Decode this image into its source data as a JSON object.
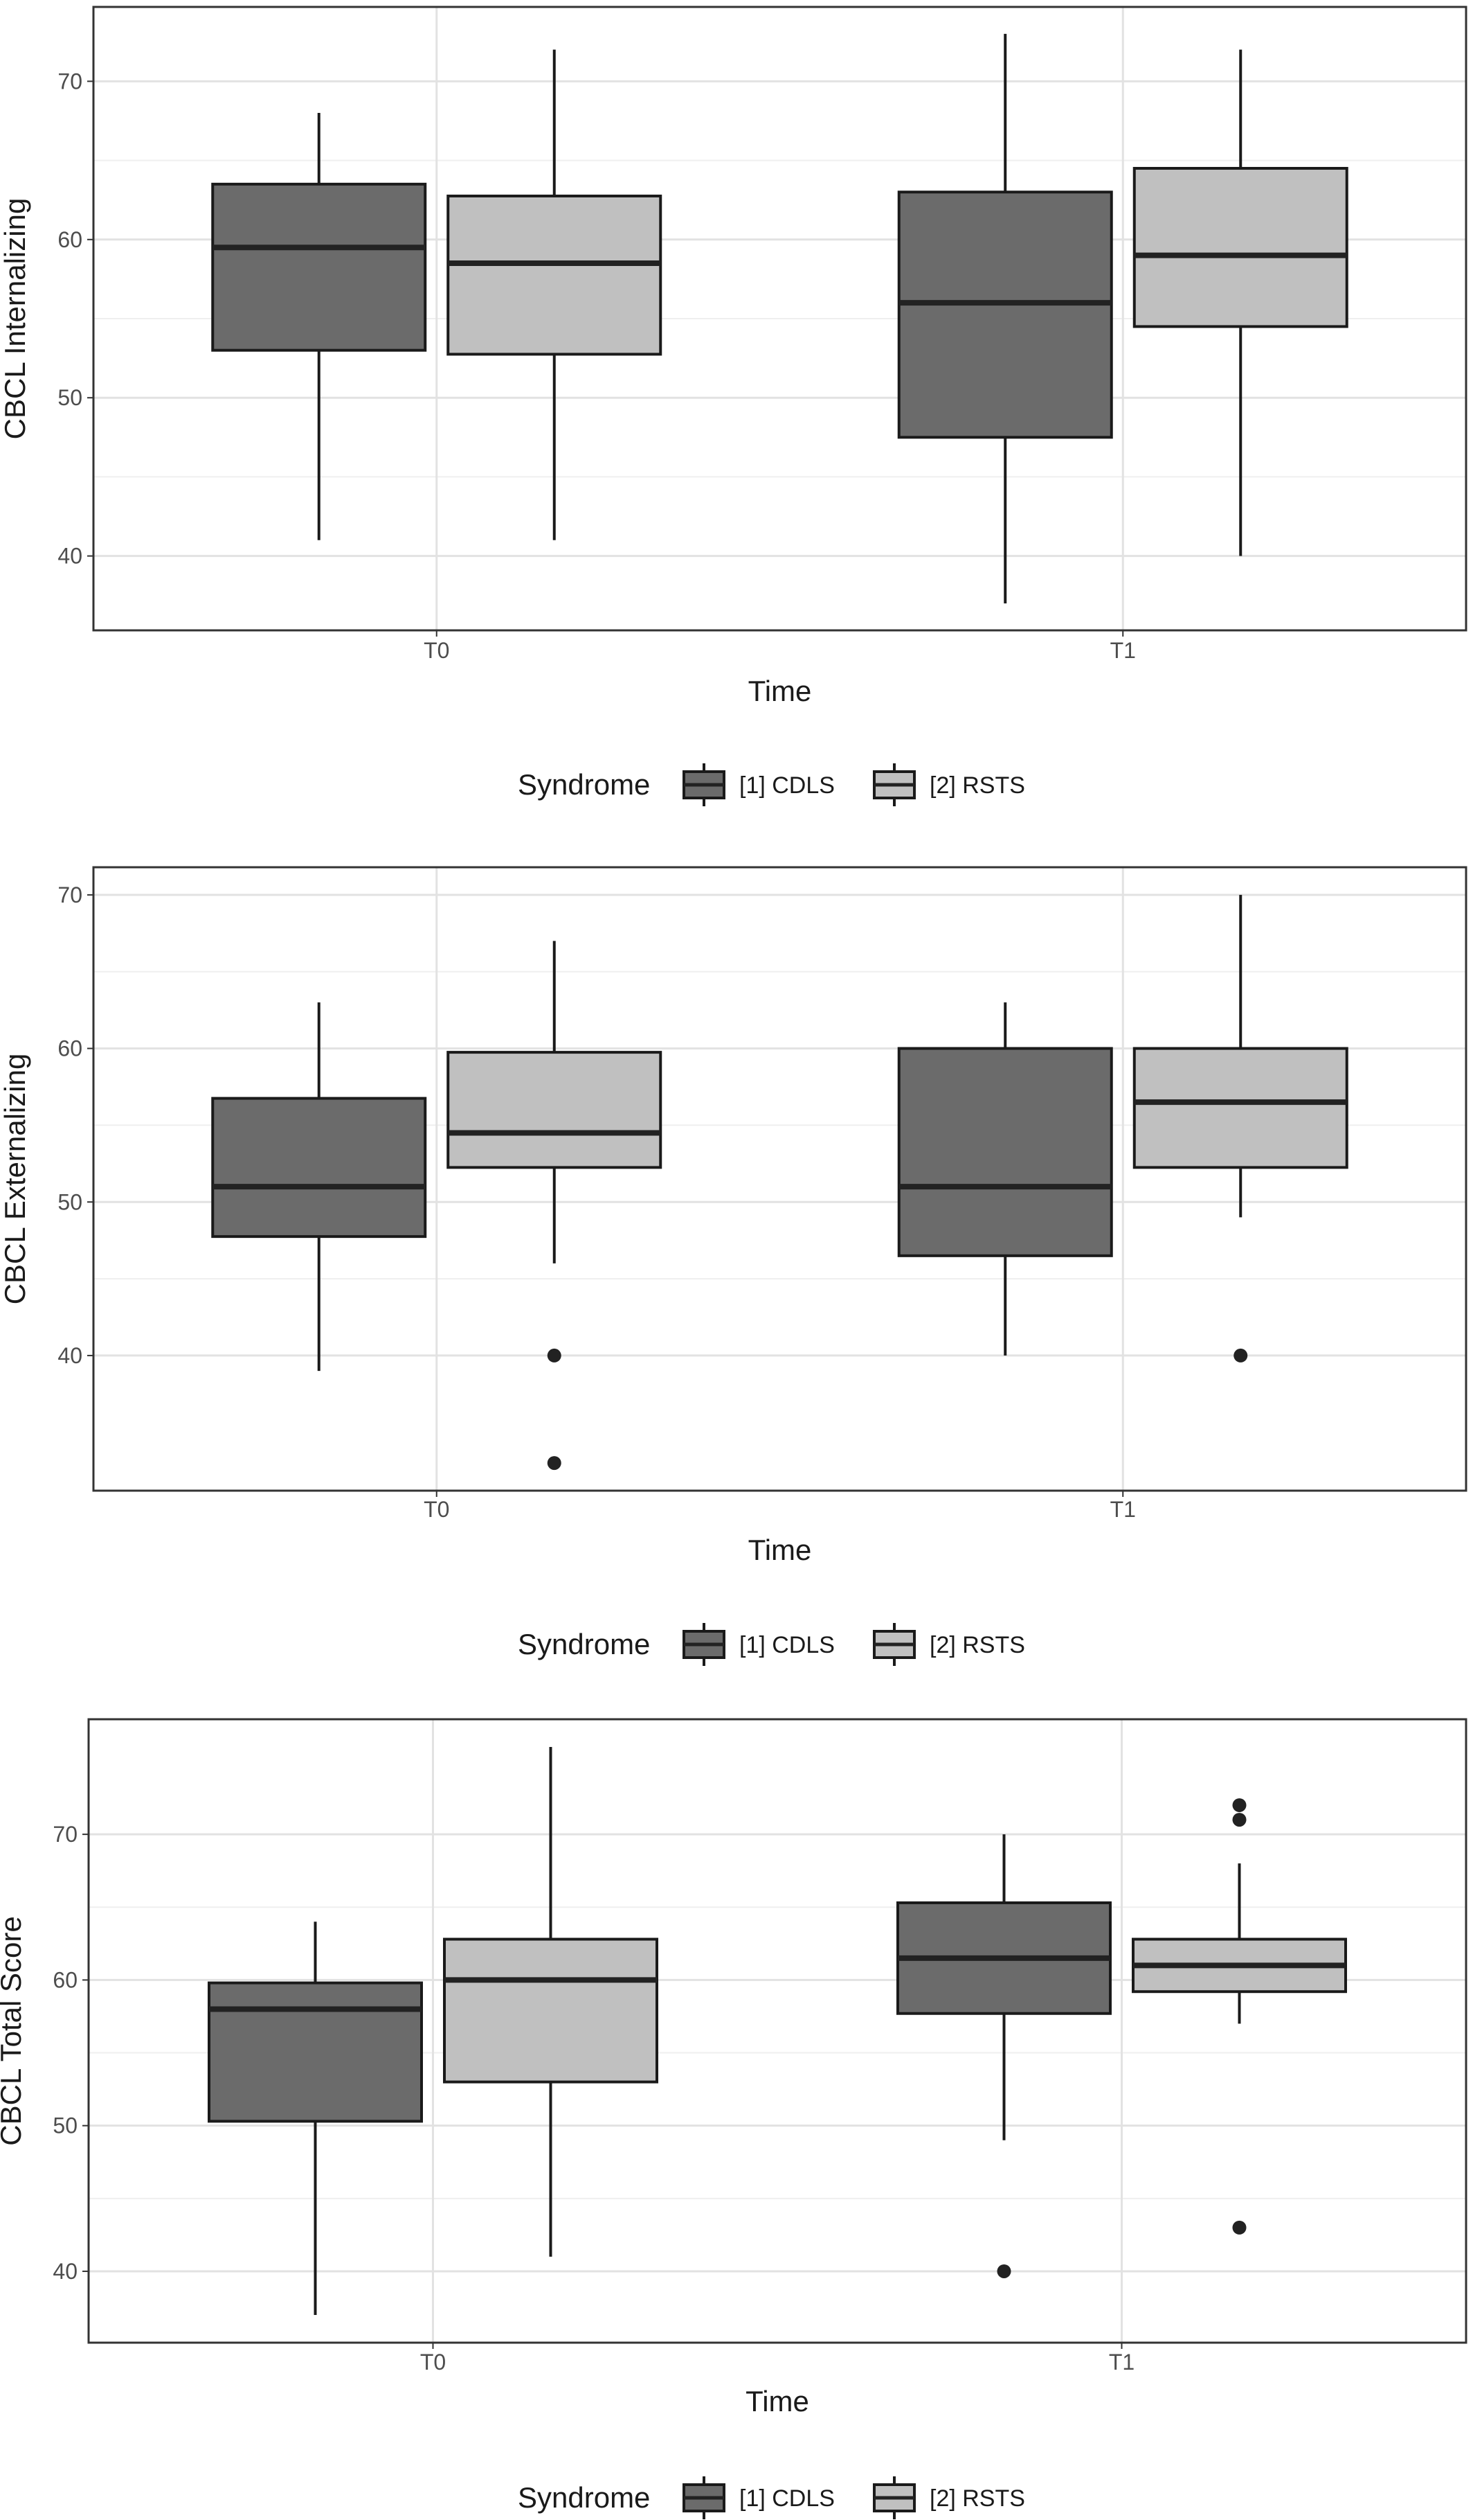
{
  "colors": {
    "cdls_fill": "#6b6b6b",
    "rsts_fill": "#c0c0c0",
    "box_stroke": "#1a1a1a",
    "median": "#222222",
    "grid_major": "#e2e2e2",
    "grid_minor": "#efefef",
    "panel_border": "#333333",
    "text": "#1a1a1a",
    "tick_text": "#4d4d4d"
  },
  "legend": {
    "title": "Syndrome",
    "items": [
      {
        "key": "cdls",
        "label": "[1] CDLS"
      },
      {
        "key": "rsts",
        "label": "[2] RSTS"
      }
    ]
  },
  "chart_data": [
    {
      "type": "boxplot",
      "xlabel": "Time",
      "ylabel": "CBCL Internalizing",
      "categories": [
        "T0",
        "T1"
      ],
      "ylim": [
        35.3,
        74.7
      ],
      "yticks": [
        40,
        50,
        60,
        70
      ],
      "grid": true,
      "legend_position": "bottom",
      "series": [
        {
          "name": "[1] CDLS",
          "key": "cdls",
          "boxes": [
            {
              "whisker_low": 41,
              "q1": 53,
              "median": 59.5,
              "q3": 63.5,
              "whisker_high": 68,
              "outliers": []
            },
            {
              "whisker_low": 37,
              "q1": 47.5,
              "median": 56,
              "q3": 63,
              "whisker_high": 73,
              "outliers": []
            }
          ]
        },
        {
          "name": "[2] RSTS",
          "key": "rsts",
          "boxes": [
            {
              "whisker_low": 41,
              "q1": 52.75,
              "median": 58.5,
              "q3": 62.75,
              "whisker_high": 72,
              "outliers": []
            },
            {
              "whisker_low": 40,
              "q1": 54.5,
              "median": 59,
              "q3": 64.5,
              "whisker_high": 72,
              "outliers": []
            }
          ]
        }
      ]
    },
    {
      "type": "boxplot",
      "xlabel": "Time",
      "ylabel": "CBCL Externalizing",
      "categories": [
        "T0",
        "T1"
      ],
      "ylim": [
        31.2,
        71.8
      ],
      "yticks": [
        40,
        50,
        60,
        70
      ],
      "grid": true,
      "legend_position": "bottom",
      "series": [
        {
          "name": "[1] CDLS",
          "key": "cdls",
          "boxes": [
            {
              "whisker_low": 39,
              "q1": 47.75,
              "median": 51,
              "q3": 56.75,
              "whisker_high": 63,
              "outliers": []
            },
            {
              "whisker_low": 40,
              "q1": 46.5,
              "median": 51,
              "q3": 60,
              "whisker_high": 63,
              "outliers": []
            }
          ]
        },
        {
          "name": "[2] RSTS",
          "key": "rsts",
          "boxes": [
            {
              "whisker_low": 46,
              "q1": 52.25,
              "median": 54.5,
              "q3": 59.75,
              "whisker_high": 67,
              "outliers": [
                40,
                33
              ]
            },
            {
              "whisker_low": 49,
              "q1": 52.25,
              "median": 56.5,
              "q3": 60,
              "whisker_high": 70,
              "outliers": [
                40
              ]
            }
          ]
        }
      ]
    },
    {
      "type": "boxplot",
      "xlabel": "Time",
      "ylabel": "CBCL Total Score",
      "categories": [
        "T0",
        "T1"
      ],
      "ylim": [
        35.1,
        77.9
      ],
      "yticks": [
        40,
        50,
        60,
        70
      ],
      "grid": true,
      "legend_position": "bottom",
      "series": [
        {
          "name": "[1] CDLS",
          "key": "cdls",
          "boxes": [
            {
              "whisker_low": 37,
              "q1": 50.3,
              "median": 58,
              "q3": 59.8,
              "whisker_high": 64,
              "outliers": []
            },
            {
              "whisker_low": 49,
              "q1": 57.7,
              "median": 61.5,
              "q3": 65.3,
              "whisker_high": 70,
              "outliers": [
                40
              ]
            }
          ]
        },
        {
          "name": "[2] RSTS",
          "key": "rsts",
          "boxes": [
            {
              "whisker_low": 41,
              "q1": 53,
              "median": 60,
              "q3": 62.8,
              "whisker_high": 76,
              "outliers": []
            },
            {
              "whisker_low": 57,
              "q1": 59.2,
              "median": 61,
              "q3": 62.8,
              "whisker_high": 68,
              "outliers": [
                72,
                71,
                43
              ]
            }
          ]
        }
      ]
    }
  ]
}
